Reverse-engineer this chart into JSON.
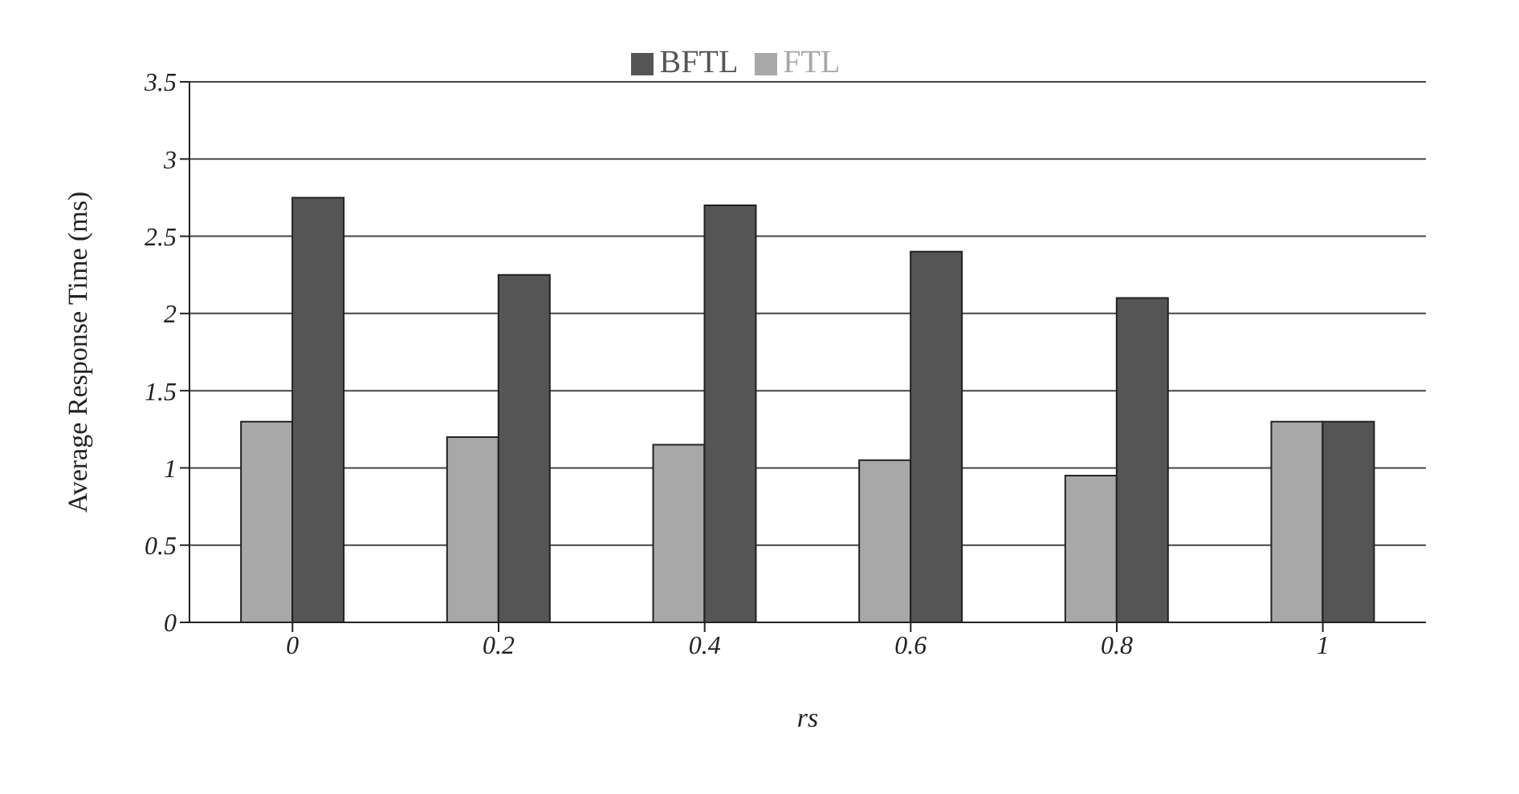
{
  "chart_data": {
    "type": "bar",
    "xlabel": "rs",
    "ylabel": "Average Response Time (ms)",
    "categories": [
      "0",
      "0.2",
      "0.4",
      "0.6",
      "0.8",
      "1"
    ],
    "series": [
      {
        "name": "FTL",
        "color": "#a8a8a8",
        "values": [
          1.3,
          1.2,
          1.15,
          1.05,
          0.95,
          1.3
        ]
      },
      {
        "name": "BFTL",
        "color": "#555555",
        "values": [
          2.75,
          2.25,
          2.7,
          2.4,
          2.1,
          1.3
        ]
      }
    ],
    "ylim": [
      0,
      3.5
    ],
    "yticks": [
      0,
      0.5,
      1,
      1.5,
      2,
      2.5,
      3,
      3.5
    ],
    "grid": "y",
    "legend": "top"
  }
}
